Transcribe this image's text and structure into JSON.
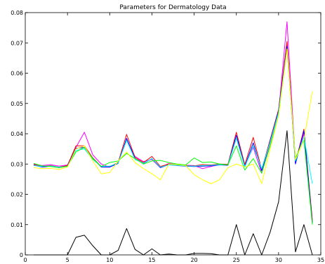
{
  "chart_data": {
    "type": "line",
    "title": "Parameters for Dermatology Data",
    "xlabel": "",
    "ylabel": "",
    "xlim": [
      0,
      35
    ],
    "ylim": [
      0,
      0.08
    ],
    "xticks": [
      0,
      5,
      10,
      15,
      20,
      25,
      30,
      35
    ],
    "yticks": [
      0,
      0.01,
      0.02,
      0.03,
      0.04,
      0.05,
      0.06,
      0.07,
      0.08
    ],
    "xtick_labels": [
      "0",
      "5",
      "10",
      "15",
      "20",
      "25",
      "30",
      "35"
    ],
    "ytick_labels": [
      "0",
      "0.01",
      "0.02",
      "0.03",
      "0.04",
      "0.05",
      "0.06",
      "0.07",
      "0.08"
    ],
    "grid": false,
    "legend": "none",
    "x": [
      1,
      2,
      3,
      4,
      5,
      6,
      7,
      8,
      9,
      10,
      11,
      12,
      13,
      14,
      15,
      16,
      17,
      18,
      19,
      20,
      21,
      22,
      23,
      24,
      25,
      26,
      27,
      28,
      29,
      30,
      31,
      32,
      33,
      34
    ],
    "series": [
      {
        "color": "#ff00ff",
        "values": [
          0.03,
          0.0295,
          0.0298,
          0.0293,
          0.0297,
          0.0355,
          0.0405,
          0.033,
          0.03,
          0.029,
          0.0305,
          0.038,
          0.0325,
          0.0308,
          0.0315,
          0.0288,
          0.0302,
          0.0298,
          0.0296,
          0.0295,
          0.0285,
          0.0292,
          0.0298,
          0.0296,
          0.0385,
          0.0295,
          0.0355,
          0.027,
          0.037,
          0.047,
          0.077,
          0.0305,
          0.04,
          0.011
        ]
      },
      {
        "color": "#ff0000",
        "values": [
          0.0298,
          0.0292,
          0.0295,
          0.029,
          0.0295,
          0.036,
          0.036,
          0.032,
          0.0292,
          0.0292,
          0.0305,
          0.0398,
          0.0322,
          0.0305,
          0.0325,
          0.0292,
          0.03,
          0.0297,
          0.0295,
          0.0294,
          0.0298,
          0.0297,
          0.03,
          0.0299,
          0.0405,
          0.0298,
          0.0388,
          0.0282,
          0.038,
          0.048,
          0.0705,
          0.0305,
          0.0415,
          0.0115
        ]
      },
      {
        "color": "#0000ff",
        "values": [
          0.0296,
          0.029,
          0.0293,
          0.0288,
          0.0293,
          0.0352,
          0.0355,
          0.0318,
          0.029,
          0.029,
          0.0302,
          0.0385,
          0.0318,
          0.0302,
          0.0318,
          0.0288,
          0.0298,
          0.0295,
          0.0293,
          0.0292,
          0.0293,
          0.0294,
          0.0297,
          0.0296,
          0.0395,
          0.0292,
          0.037,
          0.0278,
          0.0375,
          0.0475,
          0.069,
          0.03,
          0.041,
          0.0105
        ]
      },
      {
        "color": "#00ffff",
        "values": [
          0.0295,
          0.0292,
          0.0294,
          0.029,
          0.0292,
          0.0345,
          0.035,
          0.0315,
          0.0292,
          0.0293,
          0.0303,
          0.0378,
          0.0315,
          0.0303,
          0.0318,
          0.029,
          0.0297,
          0.0296,
          0.0294,
          0.0293,
          0.0295,
          0.0296,
          0.0298,
          0.0297,
          0.0385,
          0.029,
          0.036,
          0.0285,
          0.0372,
          0.047,
          0.068,
          0.031,
          0.039,
          0.0235
        ]
      },
      {
        "color": "#00ff00",
        "values": [
          0.0302,
          0.0294,
          0.0292,
          0.0288,
          0.0293,
          0.034,
          0.0355,
          0.0318,
          0.0292,
          0.0305,
          0.031,
          0.0335,
          0.0318,
          0.03,
          0.031,
          0.0312,
          0.0305,
          0.03,
          0.0297,
          0.032,
          0.0305,
          0.0307,
          0.03,
          0.0297,
          0.036,
          0.028,
          0.0318,
          0.027,
          0.036,
          0.046,
          0.068,
          0.032,
          0.038,
          0.01
        ]
      },
      {
        "color": "#ffff00",
        "values": [
          0.0288,
          0.0285,
          0.0286,
          0.0282,
          0.029,
          0.035,
          0.036,
          0.031,
          0.0268,
          0.0272,
          0.031,
          0.034,
          0.0305,
          0.0285,
          0.0268,
          0.0248,
          0.03,
          0.0298,
          0.0295,
          0.0265,
          0.0248,
          0.0235,
          0.0248,
          0.0288,
          0.03,
          0.029,
          0.03,
          0.0235,
          0.035,
          0.046,
          0.068,
          0.0315,
          0.038,
          0.054
        ]
      },
      {
        "color": "#000000",
        "values": [
          0,
          0,
          0,
          0,
          0,
          0.0058,
          0.0065,
          0.003,
          0,
          0,
          0.0015,
          0.0087,
          0.0018,
          0,
          0.002,
          0,
          0.0003,
          0,
          0,
          0.0005,
          0.0005,
          0.0004,
          0,
          0,
          0.01,
          0,
          0.007,
          0,
          0.0075,
          0.0175,
          0.041,
          0.001,
          0.01,
          0
        ]
      }
    ]
  }
}
